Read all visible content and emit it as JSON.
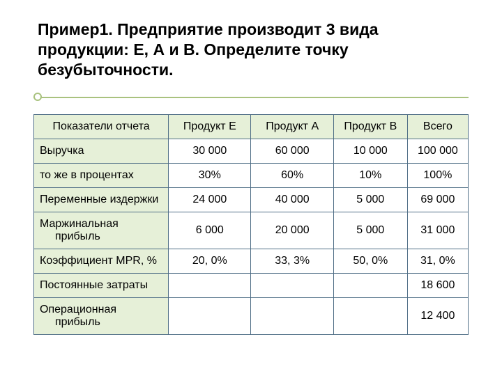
{
  "title": "Пример1. Предприятие производит 3 вида продукции: Е, А и В. Определите точку безубыточности.",
  "columns": [
    "Показатели отчета",
    "Продукт Е",
    "Продукт А",
    "Продукт В",
    "Всего"
  ],
  "rows": [
    {
      "label": "Выручка",
      "indent": false,
      "cells": [
        "30 000",
        "60 000",
        "10 000",
        "100 000"
      ]
    },
    {
      "label": "то же в процентах",
      "indent": false,
      "cells": [
        "30%",
        "60%",
        "10%",
        "100%"
      ]
    },
    {
      "label": "Переменные издержки",
      "indent": false,
      "cells": [
        "24 000",
        "40 000",
        "5 000",
        "69 000"
      ]
    },
    {
      "label": "Маржинальная прибыль",
      "indent": true,
      "cells": [
        "6 000",
        "20 000",
        "5 000",
        "31 000"
      ]
    },
    {
      "label": "Коэффициент MPR, %",
      "indent": false,
      "cells": [
        "20, 0%",
        "33, 3%",
        "50, 0%",
        "31, 0%"
      ]
    },
    {
      "label": "Постоянные затраты",
      "indent": false,
      "cells": [
        "",
        "",
        "",
        "18 600"
      ]
    },
    {
      "label": "Операционная прибыль",
      "indent": true,
      "cells": [
        "",
        "",
        "",
        "12 400"
      ]
    }
  ],
  "colors": {
    "header_bg": "#e6f0d8",
    "row_label_bg": "#e6f0d8",
    "border": "#4f6e86",
    "rule": "#a9c27f",
    "text": "#000000",
    "background": "#ffffff"
  },
  "fonts": {
    "title_pt": 23,
    "body_pt": 16,
    "title_weight": "bold",
    "family": "Arial"
  },
  "layout": {
    "slide_w": 720,
    "slide_h": 540,
    "col_widths_pct": [
      31,
      19,
      19,
      17,
      14
    ]
  }
}
